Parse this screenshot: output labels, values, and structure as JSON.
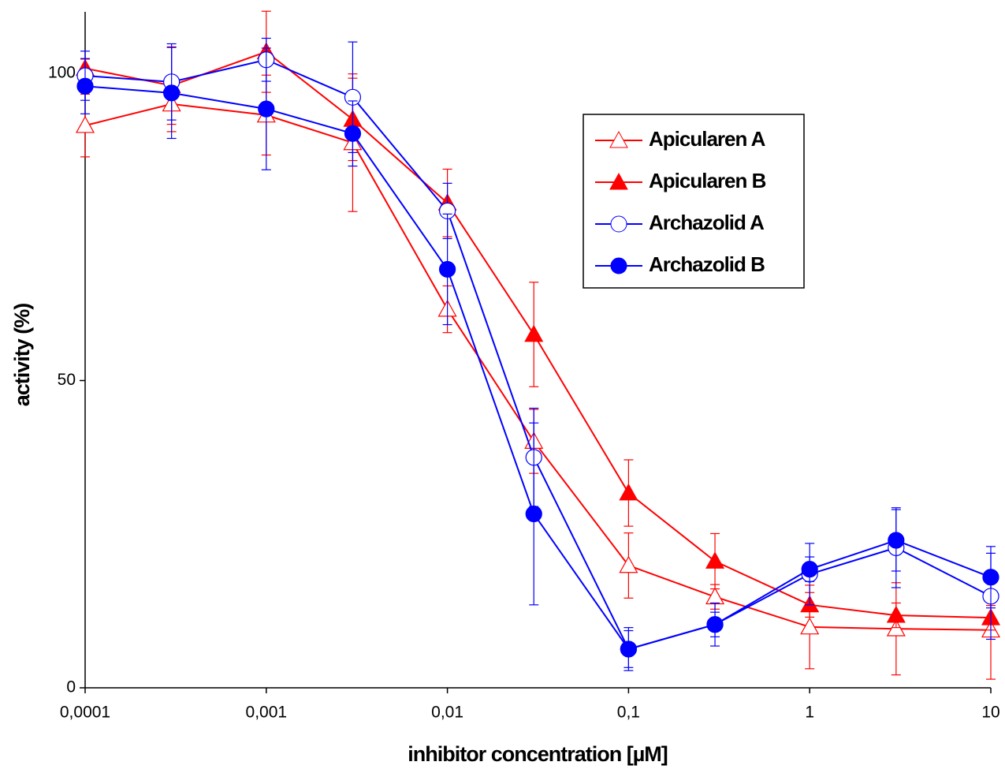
{
  "chart_data": {
    "type": "line",
    "x_label": "inhibitor concentration [µM]",
    "y_label": "activity (%)",
    "xscale": "log",
    "x": [
      0.0001,
      0.0003,
      0.001,
      0.003,
      0.01,
      0.03,
      0.1,
      0.3,
      1,
      3,
      10
    ],
    "xlim": [
      0.0001,
      10
    ],
    "xticks": [
      {
        "value": 0.0001,
        "label": "0,0001"
      },
      {
        "value": 0.001,
        "label": "0,001"
      },
      {
        "value": 0.01,
        "label": "0,01"
      },
      {
        "value": 0.1,
        "label": "0,1"
      },
      1,
      10
    ],
    "ylim": [
      0,
      110
    ],
    "yticks": [
      0,
      50,
      100
    ],
    "legend": "upper right",
    "series": [
      {
        "name": "Apicularen A",
        "color": "#ff0000",
        "marker": "triangle",
        "filled": false,
        "values": [
          91.5,
          95,
          93.2,
          88.7,
          61.6,
          40.1,
          19.9,
          14.8,
          9.9,
          9.6,
          9.4
        ],
        "errors": [
          5.1,
          4.5,
          6.5,
          11.2,
          3.8,
          5.2,
          5.3,
          2,
          6.8,
          7.5,
          8
        ]
      },
      {
        "name": "Apicularen B",
        "color": "#ff0000",
        "marker": "triangle",
        "filled": true,
        "values": [
          100.8,
          98,
          103.5,
          92.5,
          78.9,
          57.5,
          31.7,
          20.6,
          13.5,
          11.8,
          11.4
        ],
        "errors": [
          1.5,
          6.3,
          6.6,
          6.7,
          5.5,
          8.5,
          5.4,
          4.5,
          2,
          2,
          2
        ]
      },
      {
        "name": "Archazolid A",
        "color": "#0000ff",
        "marker": "circle",
        "filled": false,
        "values": [
          99.6,
          98.6,
          102.2,
          96.1,
          77.6,
          37.5,
          6.3,
          10.3,
          18.5,
          22.8,
          14.9
        ],
        "errors": [
          4,
          6.2,
          3.5,
          9,
          4.5,
          8,
          3,
          2,
          5,
          6.5,
          7
        ]
      },
      {
        "name": "Archazolid B",
        "color": "#0000ff",
        "marker": "circle",
        "filled": true,
        "values": [
          97.9,
          96.8,
          94.2,
          90.2,
          68.1,
          28.3,
          6.3,
          10.3,
          19.3,
          24,
          18
        ],
        "errors": [
          4.5,
          7.4,
          9.9,
          5.3,
          9,
          14.8,
          3.5,
          3.5,
          2,
          5,
          5
        ]
      }
    ]
  }
}
